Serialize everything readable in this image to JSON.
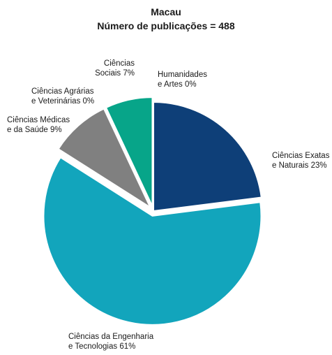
{
  "chart_data": {
    "type": "pie",
    "title": "Macau",
    "subtitle": "Número de publicações = 488",
    "slices": [
      {
        "label_lines": [
          "Ciências Exatas",
          "e Naturais 23%"
        ],
        "value": 23,
        "color": "#0e3f78",
        "exploded": false
      },
      {
        "label_lines": [
          "Ciências da Engenharia",
          "e Tecnologias 61%"
        ],
        "value": 61,
        "color": "#12a5bc",
        "exploded": true
      },
      {
        "label_lines": [
          "Ciências Médicas",
          "e da Saúde 9%"
        ],
        "value": 9,
        "color": "#808080",
        "exploded": true
      },
      {
        "label_lines": [
          "Ciências Agrárias",
          "e Veterinárias 0%"
        ],
        "value": 0,
        "color": "#b5b5b5",
        "exploded": true
      },
      {
        "label_lines": [
          "Ciências",
          "Sociais 7%"
        ],
        "value": 7,
        "color": "#07a589",
        "exploded": true
      },
      {
        "label_lines": [
          "Humanidades",
          "e Artes 0%"
        ],
        "value": 0,
        "color": "#d9d9d9",
        "exploded": false
      }
    ]
  }
}
